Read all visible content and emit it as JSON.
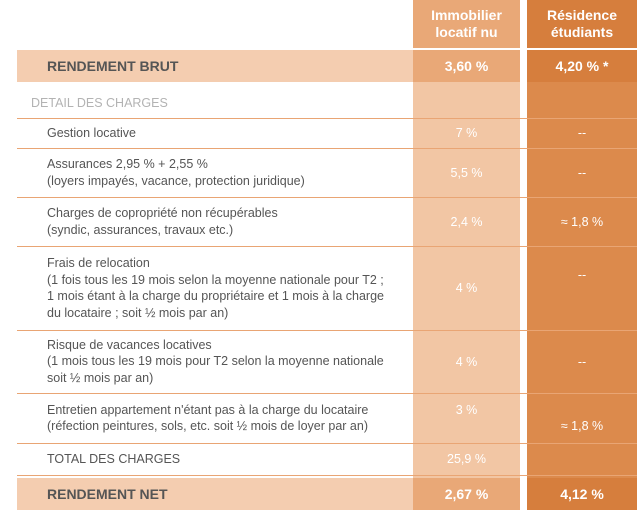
{
  "header": {
    "columns": [
      [
        "Immobilier",
        "locatif nu"
      ],
      [
        "Résidence",
        "étudiants"
      ]
    ]
  },
  "gross": {
    "label": "RENDEMENT BRUT",
    "values": [
      "3,60 %",
      "4,20 % *"
    ]
  },
  "section": "DETAIL DES CHARGES",
  "charges": [
    {
      "label": [
        "Gestion locative"
      ],
      "values": [
        "7 %",
        "--"
      ]
    },
    {
      "label": [
        "Assurances 2,95 % + 2,55 %",
        "(loyers impayés, vacance, protection juridique)"
      ],
      "values": [
        "5,5 %",
        "--"
      ]
    },
    {
      "label": [
        "Charges de copropriété non récupérables",
        "(syndic, assurances, travaux etc.)"
      ],
      "values": [
        "2,4 %",
        "≈ 1,8 %"
      ]
    },
    {
      "label": [
        "Frais de relocation",
        "(1 fois tous les 19 mois selon la moyenne nationale pour T2 ;",
        "1 mois étant à la charge du propriétaire et 1 mois à la charge",
        "du locataire ; soit ½ mois par an)"
      ],
      "values": [
        "4 %",
        "--"
      ]
    },
    {
      "label": [
        "Risque de vacances locatives",
        "(1 mois tous les 19 mois pour T2 selon la moyenne nationale",
        "soit ½ mois par an)"
      ],
      "values": [
        "4 %",
        "--"
      ]
    },
    {
      "label": [
        "Entretien appartement n'étant pas à la charge du locataire",
        "(réfection peintures, sols, etc. soit ½ mois de loyer par an)"
      ],
      "values": [
        "3 %",
        "≈ 1,8 %"
      ]
    }
  ],
  "total": {
    "label": "TOTAL DES CHARGES",
    "values": [
      "25,9 %"
    ]
  },
  "net": {
    "label": "RENDEMENT NET",
    "values": [
      "2,67 %",
      "4,12 %"
    ]
  }
}
